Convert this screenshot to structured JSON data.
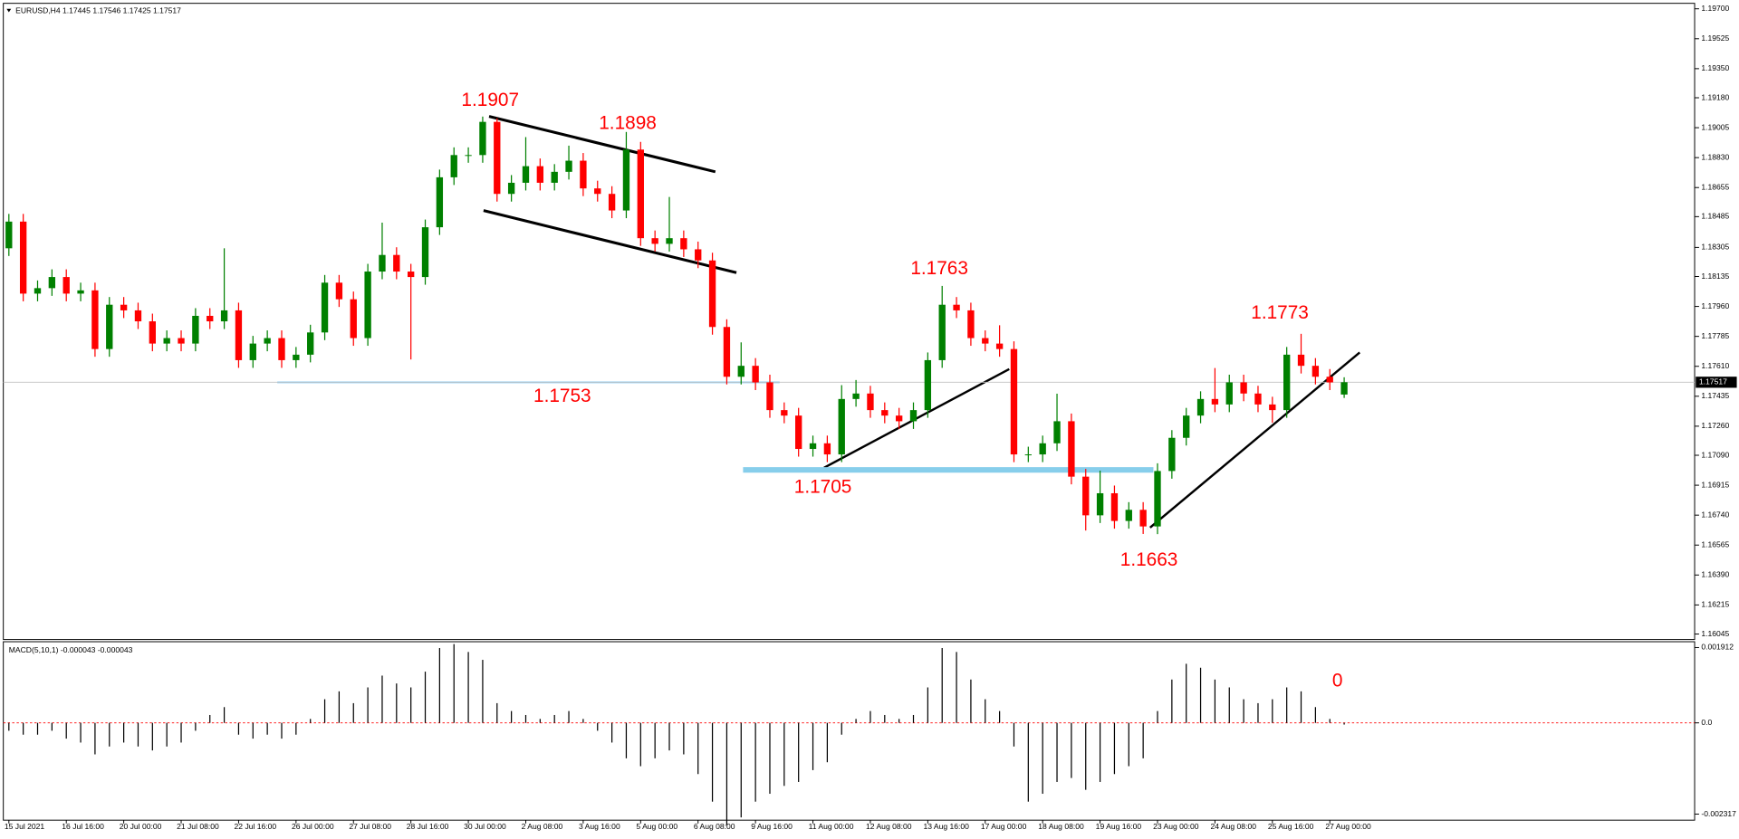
{
  "chart_data": [
    {
      "type": "candlestick",
      "title": "EURUSD,H4  1.17445 1.17546 1.17425 1.17517",
      "categories": [
        "15 Jul 2021",
        null,
        null,
        null,
        "16 Jul 16:00",
        null,
        null,
        null,
        "20 Jul 00:00",
        null,
        null,
        null,
        "21 Jul 08:00",
        null,
        null,
        null,
        "22 Jul 16:00",
        null,
        null,
        null,
        "26 Jul 00:00",
        null,
        null,
        null,
        "27 Jul 08:00",
        null,
        null,
        null,
        "28 Jul 16:00",
        null,
        null,
        null,
        "30 Jul 00:00",
        null,
        null,
        null,
        "2 Aug 08:00",
        null,
        null,
        null,
        "3 Aug 16:00",
        null,
        null,
        null,
        "5 Aug 00:00",
        null,
        null,
        null,
        "6 Aug 08:00",
        null,
        null,
        null,
        "9 Aug 16:00",
        null,
        null,
        null,
        "11 Aug 00:00",
        null,
        null,
        null,
        "12 Aug 08:00",
        null,
        null,
        null,
        "13 Aug 16:00",
        null,
        null,
        null,
        "17 Aug 00:00",
        null,
        null,
        null,
        "18 Aug 08:00",
        null,
        null,
        null,
        "19 Aug 16:00",
        null,
        null,
        null,
        "23 Aug 00:00",
        null,
        null,
        null,
        "24 Aug 08:00",
        null,
        null,
        null,
        "25 Aug 16:00",
        null,
        null,
        null,
        "27 Aug 00:00",
        null
      ],
      "open": [
        1.183,
        1.18456,
        1.18035,
        1.18067,
        1.18132,
        1.18035,
        1.18054,
        1.17711,
        1.1797,
        1.17937,
        1.17873,
        1.17743,
        1.17775,
        1.17743,
        1.17905,
        1.17873,
        1.17937,
        1.17646,
        1.17743,
        1.17775,
        1.17646,
        1.17678,
        1.17808,
        1.18099,
        1.18002,
        1.17775,
        1.18164,
        1.18261,
        1.18164,
        1.18132,
        1.18423,
        1.18715,
        1.18845,
        1.18845,
        1.19039,
        1.18618,
        1.18683,
        1.1878,
        1.18683,
        1.18747,
        1.18812,
        1.1865,
        1.18618,
        1.18521,
        1.18877,
        1.18359,
        1.18326,
        1.18359,
        1.18294,
        1.18229,
        1.1784,
        1.17549,
        1.17613,
        1.17516,
        1.17354,
        1.17322,
        1.17127,
        1.1716,
        1.17095,
        1.17419,
        1.17451,
        1.17354,
        1.17322,
        1.17289,
        1.17354,
        1.17646,
        1.1797,
        1.17937,
        1.17775,
        1.17743,
        1.17711,
        1.17095,
        1.17095,
        1.1716,
        1.17289,
        1.16965,
        1.16739,
        1.16868,
        1.16706,
        1.16771,
        1.16674,
        1.16998,
        1.17192,
        1.17322,
        1.17419,
        1.17387,
        1.17516,
        1.17451,
        1.17387,
        1.17354,
        1.17678,
        1.17613,
        1.17549,
        1.17445
      ],
      "high": [
        1.18501,
        1.18501,
        1.18112,
        1.18177,
        1.18177,
        1.18099,
        1.18099,
        1.18015,
        1.18015,
        1.17982,
        1.17918,
        1.1782,
        1.1782,
        1.1795,
        1.1795,
        1.183,
        1.17982,
        1.17788,
        1.1782,
        1.1782,
        1.17723,
        1.17853,
        1.18144,
        1.18144,
        1.18047,
        1.18209,
        1.1845,
        1.18306,
        1.18209,
        1.18468,
        1.1876,
        1.1889,
        1.1889,
        1.1907,
        1.1906,
        1.18728,
        1.1895,
        1.18825,
        1.18792,
        1.189,
        1.18857,
        1.18695,
        1.18663,
        1.1898,
        1.18922,
        1.18404,
        1.186,
        1.18404,
        1.18339,
        1.18274,
        1.17885,
        1.1775,
        1.17658,
        1.17561,
        1.17399,
        1.17367,
        1.17205,
        1.17205,
        1.175,
        1.1753,
        1.17496,
        1.17399,
        1.17367,
        1.17399,
        1.17691,
        1.1808,
        1.18015,
        1.17982,
        1.1782,
        1.1785,
        1.17756,
        1.1714,
        1.17205,
        1.1745,
        1.17334,
        1.1701,
        1.17,
        1.16913,
        1.16816,
        1.16816,
        1.17043,
        1.17237,
        1.17367,
        1.17464,
        1.176,
        1.17561,
        1.17561,
        1.17496,
        1.17432,
        1.17723,
        1.178,
        1.17658,
        1.17594,
        1.17546
      ],
      "low": [
        1.18255,
        1.1799,
        1.1799,
        1.18022,
        1.1799,
        1.1799,
        1.17666,
        1.17666,
        1.17892,
        1.17828,
        1.17698,
        1.17698,
        1.17698,
        1.17698,
        1.17828,
        1.17828,
        1.17601,
        1.17601,
        1.17698,
        1.17601,
        1.17601,
        1.17633,
        1.17763,
        1.17957,
        1.1773,
        1.1773,
        1.18119,
        1.18119,
        1.1765,
        1.18087,
        1.18378,
        1.1867,
        1.188,
        1.188,
        1.18573,
        1.18573,
        1.18638,
        1.18638,
        1.18638,
        1.18702,
        1.18605,
        1.18573,
        1.18476,
        1.18476,
        1.18314,
        1.18281,
        1.18281,
        1.18249,
        1.18184,
        1.17795,
        1.17504,
        1.17504,
        1.17471,
        1.17309,
        1.17277,
        1.17082,
        1.17082,
        1.1705,
        1.1705,
        1.17374,
        1.17309,
        1.17277,
        1.17244,
        1.17244,
        1.17309,
        1.17601,
        1.17892,
        1.1773,
        1.17698,
        1.17666,
        1.1705,
        1.1705,
        1.1705,
        1.17115,
        1.1692,
        1.1665,
        1.16694,
        1.16661,
        1.16661,
        1.1663,
        1.16629,
        1.16953,
        1.17147,
        1.17277,
        1.17342,
        1.17342,
        1.17406,
        1.17342,
        1.1728,
        1.17309,
        1.17568,
        1.17504,
        1.17471,
        1.17425
      ],
      "close": [
        1.18456,
        1.18035,
        1.18067,
        1.18132,
        1.18035,
        1.18054,
        1.17711,
        1.1797,
        1.17937,
        1.17873,
        1.17743,
        1.17775,
        1.17743,
        1.17905,
        1.17873,
        1.17937,
        1.17646,
        1.17743,
        1.17775,
        1.17646,
        1.17678,
        1.17808,
        1.18099,
        1.18002,
        1.17775,
        1.18164,
        1.18261,
        1.18164,
        1.18132,
        1.18423,
        1.18715,
        1.18845,
        1.18845,
        1.19039,
        1.18618,
        1.18683,
        1.1878,
        1.18683,
        1.18747,
        1.18812,
        1.1865,
        1.18618,
        1.18521,
        1.18877,
        1.18359,
        1.18326,
        1.18359,
        1.18294,
        1.18229,
        1.1784,
        1.17549,
        1.17613,
        1.17516,
        1.17354,
        1.17322,
        1.17127,
        1.1716,
        1.17095,
        1.17419,
        1.17451,
        1.17354,
        1.17322,
        1.17289,
        1.17354,
        1.17646,
        1.1797,
        1.17937,
        1.17775,
        1.17743,
        1.17711,
        1.17095,
        1.17095,
        1.1716,
        1.17289,
        1.16965,
        1.16739,
        1.16868,
        1.16706,
        1.16771,
        1.16674,
        1.16998,
        1.17192,
        1.17322,
        1.17419,
        1.17387,
        1.17516,
        1.17451,
        1.17387,
        1.17354,
        1.17678,
        1.17613,
        1.17549,
        1.17516,
        1.17517
      ],
      "up_color": "#008000",
      "down_color": "#ff0000",
      "ylim": [
        1.16013,
        1.19732
      ],
      "yticks": [
        {
          "value": 1.197,
          "label": "1.19700"
        },
        1.19525,
        {
          "value": 1.1935,
          "label": "1.19350"
        },
        {
          "value": 1.1918,
          "label": "1.19180"
        },
        1.19005,
        {
          "value": 1.1883,
          "label": "1.18830"
        },
        1.18655,
        1.18485,
        1.18305,
        1.18135,
        {
          "value": 1.1796,
          "label": "1.17960"
        },
        1.17785,
        {
          "value": 1.1761,
          "label": "1.17610"
        },
        1.17435,
        {
          "value": 1.1726,
          "label": "1.17260"
        },
        {
          "value": 1.1709,
          "label": "1.17090"
        },
        1.16915,
        {
          "value": 1.1674,
          "label": "1.16740"
        },
        1.16565,
        {
          "value": 1.1639,
          "label": "1.16390"
        },
        1.16215,
        1.16045
      ],
      "current_price": 1.17517,
      "annotations": [
        "1.1907",
        "1.1898",
        "1.1763",
        "1.1753",
        "1.1705",
        "1.1663",
        "1.1773"
      ]
    },
    {
      "type": "bar",
      "title": "MACD(5,10,1) -0.000043 -0.000043",
      "color": "#000000",
      "values": [
        -0.0002,
        -0.0003,
        -0.0003,
        -0.0002,
        -0.0004,
        -0.0005,
        -0.0008,
        -0.0006,
        -0.0005,
        -0.0006,
        -0.0007,
        -0.0006,
        -0.0005,
        -0.0002,
        0.0002,
        0.0004,
        -0.0003,
        -0.0004,
        -0.0003,
        -0.0004,
        -0.0003,
        0.0001,
        0.0006,
        0.0008,
        0.0005,
        0.0009,
        0.0012,
        0.001,
        0.0009,
        0.0013,
        0.0019,
        0.002,
        0.0018,
        0.0016,
        0.0005,
        0.0003,
        0.0002,
        0.0001,
        0.0002,
        0.0003,
        0.0001,
        -0.0002,
        -0.0005,
        -0.0009,
        -0.0011,
        -0.0009,
        -0.0007,
        -0.0008,
        -0.0013,
        -0.002,
        -0.0026,
        -0.0024,
        -0.002,
        -0.0018,
        -0.0016,
        -0.0015,
        -0.0012,
        -0.001,
        -0.0003,
        0.0001,
        0.0003,
        0.0002,
        0.0001,
        0.0002,
        0.0009,
        0.0019,
        0.0018,
        0.0011,
        0.0006,
        0.0003,
        -0.0006,
        -0.002,
        -0.0018,
        -0.0015,
        -0.0014,
        -0.0017,
        -0.0015,
        -0.0013,
        -0.0011,
        -0.0009,
        0.0003,
        0.0011,
        0.0015,
        0.0014,
        0.0011,
        0.0009,
        0.0006,
        0.0005,
        0.0006,
        0.0009,
        0.0008,
        0.0004,
        0.0001,
        -4.3e-05
      ],
      "ylim": [
        -0.00247,
        0.00206
      ],
      "yticks": [
        0.001912,
        {
          "value": 0,
          "label": "0.0"
        },
        -0.002317
      ],
      "annotations": [
        "0"
      ]
    }
  ]
}
